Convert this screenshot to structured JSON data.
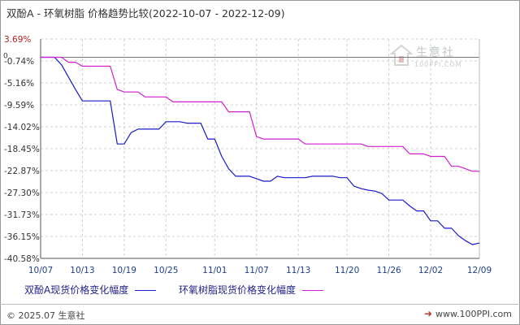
{
  "title": "双酚A - 环氧树脂 价格趋势比较(2022-10-07 - 2022-12-09)",
  "footer": {
    "copyright": "© 2025.07 生意社",
    "site": "www.100PPI.com"
  },
  "watermark": {
    "name": "生意社",
    "url": "100PPI.COM"
  },
  "colors": {
    "series_bpa": "#1a1ac8",
    "series_epoxy": "#d21ed2",
    "grid": "#d0d0d0",
    "axis": "#555555",
    "tick_label": "#b22222",
    "x_tick_label": "#1f3f8a"
  },
  "chart_data": {
    "type": "line",
    "title": "双酚A - 环氧树脂 价格趋势比较(2022-10-07 - 2022-12-09)",
    "xlabel": "",
    "ylabel": "",
    "x": [
      "2022-10-07",
      "2022-10-08",
      "2022-10-09",
      "2022-10-10",
      "2022-10-11",
      "2022-10-12",
      "2022-10-13",
      "2022-10-14",
      "2022-10-15",
      "2022-10-16",
      "2022-10-17",
      "2022-10-18",
      "2022-10-19",
      "2022-10-20",
      "2022-10-21",
      "2022-10-22",
      "2022-10-23",
      "2022-10-24",
      "2022-10-25",
      "2022-10-26",
      "2022-10-27",
      "2022-10-28",
      "2022-10-29",
      "2022-10-30",
      "2022-10-31",
      "2022-11-01",
      "2022-11-02",
      "2022-11-03",
      "2022-11-04",
      "2022-11-05",
      "2022-11-06",
      "2022-11-07",
      "2022-11-08",
      "2022-11-09",
      "2022-11-10",
      "2022-11-11",
      "2022-11-12",
      "2022-11-13",
      "2022-11-14",
      "2022-11-15",
      "2022-11-16",
      "2022-11-17",
      "2022-11-18",
      "2022-11-19",
      "2022-11-20",
      "2022-11-21",
      "2022-11-22",
      "2022-11-23",
      "2022-11-24",
      "2022-11-25",
      "2022-11-26",
      "2022-11-27",
      "2022-11-28",
      "2022-11-29",
      "2022-11-30",
      "2022-12-01",
      "2022-12-02",
      "2022-12-03",
      "2022-12-04",
      "2022-12-05",
      "2022-12-06",
      "2022-12-07",
      "2022-12-08",
      "2022-12-09"
    ],
    "x_ticks": [
      "10/07",
      "10/13",
      "10/19",
      "10/25",
      "11/01",
      "11/07",
      "11/13",
      "11/20",
      "11/26",
      "12/02",
      "12/09"
    ],
    "x_tick_index": [
      0,
      6,
      12,
      18,
      25,
      31,
      37,
      44,
      50,
      56,
      63
    ],
    "y_ticks": [
      "3.69%",
      "-0.74%",
      "-5.16%",
      "-9.59%",
      "-14.02%",
      "-18.45%",
      "-22.87%",
      "-27.30%",
      "-31.73%",
      "-36.15%",
      "-40.58%"
    ],
    "y_zero_label": "0",
    "ylim": [
      -40.58,
      3.69
    ],
    "grid": true,
    "legend_position": "bottom",
    "series": [
      {
        "name": "双酚A现货价格变化幅度",
        "values": [
          0,
          0,
          0,
          -1.5,
          -4.0,
          -6.5,
          -8.8,
          -8.8,
          -8.8,
          -8.8,
          -8.8,
          -17.5,
          -17.5,
          -15.2,
          -14.5,
          -14.5,
          -14.5,
          -14.5,
          -13.0,
          -13.0,
          -13.0,
          -13.3,
          -13.3,
          -13.3,
          -16.5,
          -16.5,
          -20.0,
          -22.5,
          -24.0,
          -24.0,
          -24.0,
          -24.5,
          -25.0,
          -25.0,
          -24.0,
          -24.3,
          -24.3,
          -24.3,
          -24.3,
          -24.0,
          -24.0,
          -24.0,
          -24.0,
          -24.3,
          -24.3,
          -26.0,
          -26.5,
          -26.8,
          -27.0,
          -27.5,
          -28.8,
          -28.8,
          -28.8,
          -30.0,
          -31.0,
          -31.0,
          -33.0,
          -33.0,
          -34.5,
          -34.5,
          -36.0,
          -37.0,
          -37.8,
          -37.5
        ]
      },
      {
        "name": "环氧树脂现货价格变化幅度",
        "values": [
          0,
          0,
          0,
          0,
          -1.0,
          -1.0,
          -1.8,
          -1.8,
          -1.8,
          -1.8,
          -1.8,
          -6.5,
          -7.0,
          -7.0,
          -7.0,
          -8.0,
          -8.0,
          -8.0,
          -8.0,
          -9.0,
          -9.0,
          -9.0,
          -9.0,
          -9.0,
          -9.0,
          -9.0,
          -9.0,
          -11.0,
          -11.0,
          -11.0,
          -11.0,
          -16.0,
          -16.5,
          -16.5,
          -16.5,
          -16.5,
          -16.5,
          -16.5,
          -17.5,
          -17.5,
          -17.5,
          -17.5,
          -17.5,
          -17.5,
          -17.5,
          -17.5,
          -17.5,
          -18.0,
          -18.0,
          -18.0,
          -18.0,
          -18.0,
          -18.0,
          -19.5,
          -19.5,
          -19.5,
          -20.0,
          -20.0,
          -20.0,
          -22.0,
          -22.0,
          -22.5,
          -23.0,
          -23.0
        ]
      }
    ]
  }
}
